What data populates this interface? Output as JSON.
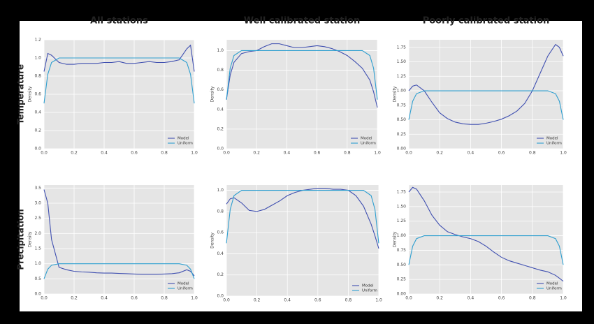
{
  "chart_data": [
    {
      "type": "line",
      "title": "All stations",
      "row_label": "Temperature",
      "ylabel": "Density",
      "grid": true,
      "legend": "lower right",
      "x": [
        0,
        0.025,
        0.05,
        0.1,
        0.15,
        0.2,
        0.25,
        0.3,
        0.35,
        0.4,
        0.45,
        0.5,
        0.55,
        0.6,
        0.65,
        0.7,
        0.75,
        0.8,
        0.85,
        0.9,
        0.95,
        0.975,
        1
      ],
      "xlim": [
        0,
        1
      ],
      "xticks": [
        {
          "value": 0,
          "label": "0.0"
        },
        0.2,
        0.4,
        0.6,
        0.8,
        {
          "value": 1,
          "label": "1.0"
        }
      ],
      "ylim": [
        0,
        1.2
      ],
      "yticks": [
        {
          "value": 0,
          "label": "0.0"
        },
        0.2,
        0.4,
        0.6,
        0.8,
        {
          "value": 1,
          "label": "1.0"
        },
        1.2
      ],
      "series": [
        {
          "name": "Model",
          "color": "#3f4fb0",
          "values": [
            0.85,
            1.05,
            1.03,
            0.95,
            0.93,
            0.93,
            0.94,
            0.94,
            0.94,
            0.95,
            0.95,
            0.96,
            0.94,
            0.94,
            0.95,
            0.96,
            0.95,
            0.95,
            0.96,
            0.98,
            1.1,
            1.14,
            0.85
          ]
        },
        {
          "name": "Uniform",
          "color": "#2e9fd0",
          "values": [
            0.5,
            0.82,
            0.95,
            1,
            1,
            1,
            1,
            1,
            1,
            1,
            1,
            1,
            1,
            1,
            1,
            1,
            1,
            1,
            1,
            1,
            0.95,
            0.82,
            0.5
          ]
        }
      ]
    },
    {
      "type": "line",
      "title": "Well calibrated station",
      "ylabel": "Density",
      "grid": true,
      "legend": "lower right",
      "x": [
        0,
        0.025,
        0.05,
        0.1,
        0.15,
        0.2,
        0.25,
        0.3,
        0.35,
        0.4,
        0.45,
        0.5,
        0.55,
        0.6,
        0.65,
        0.7,
        0.75,
        0.8,
        0.85,
        0.9,
        0.95,
        0.975,
        1
      ],
      "xlim": [
        0,
        1
      ],
      "xticks": [
        {
          "value": 0,
          "label": "0.0"
        },
        0.2,
        0.4,
        0.6,
        0.8,
        {
          "value": 1,
          "label": "1.0"
        }
      ],
      "ylim": [
        0,
        1.11
      ],
      "yticks": [
        {
          "value": 0,
          "label": "0.0"
        },
        0.2,
        0.4,
        0.6,
        0.8,
        {
          "value": 1,
          "label": "1.0"
        }
      ],
      "series": [
        {
          "name": "Model",
          "color": "#3f4fb0",
          "values": [
            0.5,
            0.75,
            0.88,
            0.97,
            0.99,
            1,
            1.04,
            1.07,
            1.07,
            1.05,
            1.03,
            1.03,
            1.04,
            1.05,
            1.04,
            1.02,
            0.99,
            0.95,
            0.89,
            0.82,
            0.7,
            0.58,
            0.42
          ]
        },
        {
          "name": "Uniform",
          "color": "#2e9fd0",
          "values": [
            0.5,
            0.82,
            0.95,
            1,
            1,
            1,
            1,
            1,
            1,
            1,
            1,
            1,
            1,
            1,
            1,
            1,
            1,
            1,
            1,
            1,
            0.95,
            0.82,
            0.5
          ]
        }
      ]
    },
    {
      "type": "line",
      "title": "Poorly calibrated station",
      "ylabel": "Density",
      "grid": true,
      "legend": "lower right",
      "x": [
        0,
        0.025,
        0.05,
        0.1,
        0.15,
        0.2,
        0.25,
        0.3,
        0.35,
        0.4,
        0.45,
        0.5,
        0.55,
        0.6,
        0.65,
        0.7,
        0.75,
        0.8,
        0.85,
        0.9,
        0.95,
        0.975,
        1
      ],
      "xlim": [
        0,
        1
      ],
      "xticks": [
        {
          "value": 0,
          "label": "0.0"
        },
        0.2,
        0.4,
        0.6,
        0.8,
        {
          "value": 1,
          "label": "1.0"
        }
      ],
      "ylim": [
        0,
        1.88
      ],
      "yticks": [
        {
          "value": 0,
          "label": "0.00"
        },
        0.25,
        {
          "value": 0.5,
          "label": "0.50"
        },
        0.75,
        {
          "value": 1,
          "label": "1.00"
        },
        1.25,
        {
          "value": 1.5,
          "label": "1.50"
        },
        1.75
      ],
      "series": [
        {
          "name": "Model",
          "color": "#3f4fb0",
          "values": [
            1,
            1.08,
            1.1,
            1,
            0.8,
            0.62,
            0.52,
            0.46,
            0.43,
            0.42,
            0.42,
            0.44,
            0.47,
            0.51,
            0.57,
            0.65,
            0.78,
            1,
            1.3,
            1.6,
            1.8,
            1.75,
            1.6
          ]
        },
        {
          "name": "Uniform",
          "color": "#2e9fd0",
          "values": [
            0.5,
            0.82,
            0.95,
            1,
            1,
            1,
            1,
            1,
            1,
            1,
            1,
            1,
            1,
            1,
            1,
            1,
            1,
            1,
            1,
            1,
            0.95,
            0.82,
            0.5
          ]
        }
      ]
    },
    {
      "type": "line",
      "row_label": "Precipitation",
      "ylabel": "Density",
      "grid": true,
      "legend": "lower right",
      "x": [
        0,
        0.025,
        0.05,
        0.1,
        0.15,
        0.2,
        0.25,
        0.3,
        0.35,
        0.4,
        0.45,
        0.5,
        0.55,
        0.6,
        0.65,
        0.7,
        0.75,
        0.8,
        0.85,
        0.9,
        0.95,
        0.975,
        1
      ],
      "xlim": [
        0,
        1
      ],
      "xticks": [
        {
          "value": 0,
          "label": "0.0"
        },
        0.2,
        0.4,
        0.6,
        0.8,
        {
          "value": 1,
          "label": "1.0"
        }
      ],
      "ylim": [
        0,
        3.6
      ],
      "yticks": [
        {
          "value": 0,
          "label": "0.0"
        },
        0.5,
        {
          "value": 1,
          "label": "1.0"
        },
        1.5,
        {
          "value": 2,
          "label": "2.0"
        },
        2.5,
        {
          "value": 3,
          "label": "3.0"
        },
        3.5
      ],
      "series": [
        {
          "name": "Model",
          "color": "#3f4fb0",
          "values": [
            3.45,
            3,
            1.8,
            0.88,
            0.8,
            0.75,
            0.73,
            0.72,
            0.7,
            0.69,
            0.69,
            0.68,
            0.67,
            0.66,
            0.65,
            0.65,
            0.65,
            0.66,
            0.67,
            0.7,
            0.8,
            0.75,
            0.6
          ]
        },
        {
          "name": "Uniform",
          "color": "#2e9fd0",
          "values": [
            0.5,
            0.82,
            0.95,
            1,
            1,
            1,
            1,
            1,
            1,
            1,
            1,
            1,
            1,
            1,
            1,
            1,
            1,
            1,
            1,
            1,
            0.95,
            0.82,
            0.5
          ]
        }
      ]
    },
    {
      "type": "line",
      "ylabel": "Density",
      "grid": true,
      "legend": "lower right",
      "x": [
        0,
        0.025,
        0.05,
        0.1,
        0.15,
        0.2,
        0.25,
        0.3,
        0.35,
        0.4,
        0.45,
        0.5,
        0.55,
        0.6,
        0.65,
        0.7,
        0.75,
        0.8,
        0.85,
        0.9,
        0.95,
        0.975,
        1
      ],
      "xlim": [
        0,
        1
      ],
      "xticks": [
        {
          "value": 0,
          "label": "0.0"
        },
        0.2,
        0.4,
        0.6,
        0.8,
        {
          "value": 1,
          "label": "1.0"
        }
      ],
      "ylim": [
        0,
        1.05
      ],
      "yticks": [
        {
          "value": 0,
          "label": "0.0"
        },
        0.2,
        0.4,
        0.6,
        0.8,
        {
          "value": 1,
          "label": "1.0"
        }
      ],
      "series": [
        {
          "name": "Model",
          "color": "#3f4fb0",
          "values": [
            0.87,
            0.92,
            0.93,
            0.88,
            0.81,
            0.8,
            0.82,
            0.86,
            0.9,
            0.95,
            0.98,
            1,
            1.01,
            1.02,
            1.02,
            1.01,
            1.01,
            1,
            0.95,
            0.85,
            0.68,
            0.57,
            0.45
          ]
        },
        {
          "name": "Uniform",
          "color": "#2e9fd0",
          "values": [
            0.5,
            0.82,
            0.95,
            1,
            1,
            1,
            1,
            1,
            1,
            1,
            1,
            1,
            1,
            1,
            1,
            1,
            1,
            1,
            1,
            1,
            0.95,
            0.82,
            0.5
          ]
        }
      ]
    },
    {
      "type": "line",
      "ylabel": "Density",
      "grid": true,
      "legend": "lower right",
      "x": [
        0,
        0.025,
        0.05,
        0.1,
        0.15,
        0.2,
        0.25,
        0.3,
        0.35,
        0.4,
        0.45,
        0.5,
        0.55,
        0.6,
        0.65,
        0.7,
        0.75,
        0.8,
        0.85,
        0.9,
        0.95,
        0.975,
        1
      ],
      "xlim": [
        0,
        1
      ],
      "xticks": [
        {
          "value": 0,
          "label": "0.0"
        },
        0.2,
        0.4,
        0.6,
        0.8,
        {
          "value": 1,
          "label": "1.0"
        }
      ],
      "ylim": [
        0,
        1.87
      ],
      "yticks": [
        {
          "value": 0,
          "label": "0.00"
        },
        0.25,
        {
          "value": 0.5,
          "label": "0.50"
        },
        0.75,
        {
          "value": 1,
          "label": "1.00"
        },
        1.25,
        {
          "value": 1.5,
          "label": "1.50"
        },
        1.75
      ],
      "series": [
        {
          "name": "Model",
          "color": "#3f4fb0",
          "values": [
            1.75,
            1.83,
            1.8,
            1.6,
            1.35,
            1.18,
            1.07,
            1.02,
            0.98,
            0.95,
            0.9,
            0.82,
            0.72,
            0.63,
            0.57,
            0.53,
            0.49,
            0.45,
            0.41,
            0.38,
            0.32,
            0.27,
            0.22
          ]
        },
        {
          "name": "Uniform",
          "color": "#2e9fd0",
          "values": [
            0.5,
            0.82,
            0.95,
            1,
            1,
            1,
            1,
            1,
            1,
            1,
            1,
            1,
            1,
            1,
            1,
            1,
            1,
            1,
            1,
            1,
            0.95,
            0.82,
            0.5
          ]
        }
      ]
    }
  ]
}
